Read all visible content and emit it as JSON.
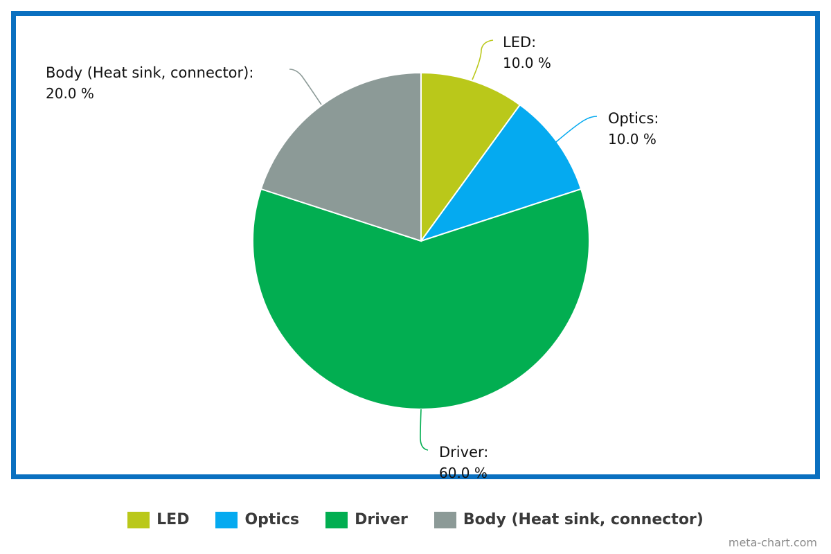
{
  "chart_data": {
    "type": "pie",
    "title": "",
    "slices": [
      {
        "label": "LED",
        "value": 10.0,
        "value_text": "10.0 %",
        "color": "#bac81a"
      },
      {
        "label": "Optics",
        "value": 10.0,
        "value_text": "10.0 %",
        "color": "#05aaf0"
      },
      {
        "label": "Driver",
        "value": 60.0,
        "value_text": "60.0 %",
        "color": "#02ae51"
      },
      {
        "label": "Body (Heat sink, connector)",
        "value": 20.0,
        "value_text": "20.0 %",
        "color": "#8c9a97"
      }
    ],
    "start_angle": "12 o'clock",
    "direction": "clockwise",
    "legend_position": "bottom",
    "frame_color": "#0a70c0"
  },
  "credit": "meta-chart.com"
}
